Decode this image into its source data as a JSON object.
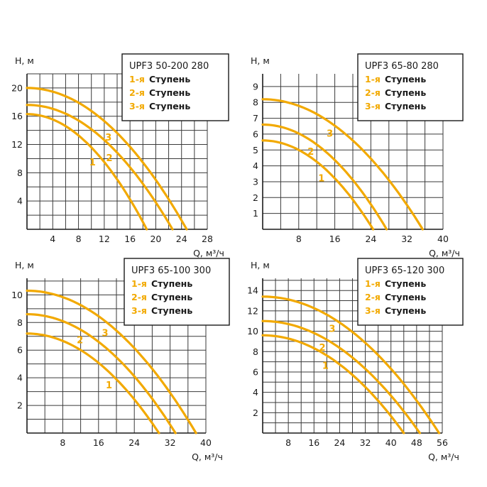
{
  "colors": {
    "curve": "#f2a900",
    "grid": "#3a3a3a",
    "axis": "#1a1a1a"
  },
  "chart_data": [
    {
      "type": "line",
      "title": "UPF3 50-200 280",
      "xlabel": "Q, м³/ч",
      "ylabel": "H, м",
      "xlim": [
        0,
        28
      ],
      "ylim": [
        0,
        22
      ],
      "xticks": [
        "4",
        "8",
        "12",
        "16",
        "20",
        "24",
        "28"
      ],
      "xtick_values": [
        4,
        8,
        12,
        16,
        20,
        24,
        28
      ],
      "yticks": [
        "4",
        "8",
        "12",
        "16",
        "20"
      ],
      "ytick_values": [
        4,
        8,
        12,
        16,
        20
      ],
      "legend": [
        {
          "num": "1-я",
          "word": "Ступень"
        },
        {
          "num": "2-я",
          "word": "Ступень"
        },
        {
          "num": "3-я",
          "word": "Ступень"
        }
      ],
      "series": [
        {
          "name": "1",
          "h0": 16.3,
          "qmax": 18.6,
          "label_at": 0.6
        },
        {
          "name": "2",
          "h0": 17.6,
          "qmax": 22.6,
          "label_at": 0.61
        },
        {
          "name": "3",
          "h0": 20.0,
          "qmax": 24.8,
          "label_at": 0.55
        }
      ]
    },
    {
      "type": "line",
      "title": "UPF3 65-80 280",
      "xlabel": "Q, м³/ч",
      "ylabel": "H, м",
      "xlim": [
        0,
        40
      ],
      "ylim": [
        0,
        9.8
      ],
      "xticks": [
        "8",
        "16",
        "24",
        "32",
        "40"
      ],
      "xtick_values": [
        8,
        16,
        24,
        32,
        40
      ],
      "yticks": [
        "1",
        "2",
        "3",
        "4",
        "5",
        "6",
        "7",
        "8",
        "9"
      ],
      "ytick_values": [
        1,
        2,
        3,
        4,
        5,
        6,
        7,
        8,
        9
      ],
      "legend": [
        {
          "num": "1-я",
          "word": "Ступень"
        },
        {
          "num": "2-я",
          "word": "Ступень"
        },
        {
          "num": "3-я",
          "word": "Ступень"
        }
      ],
      "series": [
        {
          "name": "1",
          "h0": 5.6,
          "qmax": 24.5,
          "label_at": 0.59
        },
        {
          "name": "2",
          "h0": 6.6,
          "qmax": 27.5,
          "label_at": 0.44
        },
        {
          "name": "3",
          "h0": 8.2,
          "qmax": 35.5,
          "label_at": 0.46
        }
      ]
    },
    {
      "type": "line",
      "title": "UPF3 65-100 300",
      "xlabel": "Q, м³/ч",
      "ylabel": "H, м",
      "xlim": [
        0,
        40
      ],
      "ylim": [
        0,
        11.2
      ],
      "xticks": [
        "8",
        "16",
        "24",
        "32",
        "40"
      ],
      "xtick_values": [
        8,
        16,
        24,
        32,
        40
      ],
      "yticks": [
        "2",
        "4",
        "6",
        "8",
        "10"
      ],
      "ytick_values": [
        2,
        4,
        6,
        8,
        10
      ],
      "legend": [
        {
          "num": "1-я",
          "word": "Ступень"
        },
        {
          "num": "2-я",
          "word": "Ступень"
        },
        {
          "num": "3-я",
          "word": "Ступень"
        }
      ],
      "series": [
        {
          "name": "1",
          "h0": 7.2,
          "qmax": 29.5,
          "label_at": 0.67
        },
        {
          "name": "2",
          "h0": 8.6,
          "qmax": 33.2,
          "label_at": 0.4
        },
        {
          "name": "3",
          "h0": 10.3,
          "qmax": 37.8,
          "label_at": 0.5
        }
      ]
    },
    {
      "type": "line",
      "title": "UPF3 65-120 300",
      "xlabel": "Q, м³/ч",
      "ylabel": "H, м",
      "xlim": [
        0,
        56
      ],
      "ylim": [
        0,
        15.2
      ],
      "xticks": [
        "8",
        "16",
        "24",
        "32",
        "40",
        "48",
        "56"
      ],
      "xtick_values": [
        8,
        16,
        24,
        32,
        40,
        48,
        56
      ],
      "yticks": [
        "2",
        "4",
        "6",
        "8",
        "10",
        "12",
        "14"
      ],
      "ytick_values": [
        2,
        4,
        6,
        8,
        10,
        12,
        14
      ],
      "legend": [
        {
          "num": "1-я",
          "word": "Ступень"
        },
        {
          "num": "2-я",
          "word": "Ступень"
        },
        {
          "num": "3-я",
          "word": "Ступень"
        }
      ],
      "series": [
        {
          "name": "1",
          "h0": 9.6,
          "qmax": 44.0,
          "label_at": 0.49
        },
        {
          "name": "2",
          "h0": 11.0,
          "qmax": 49.0,
          "label_at": 0.42
        },
        {
          "name": "3",
          "h0": 13.4,
          "qmax": 55.0,
          "label_at": 0.43
        }
      ]
    }
  ]
}
